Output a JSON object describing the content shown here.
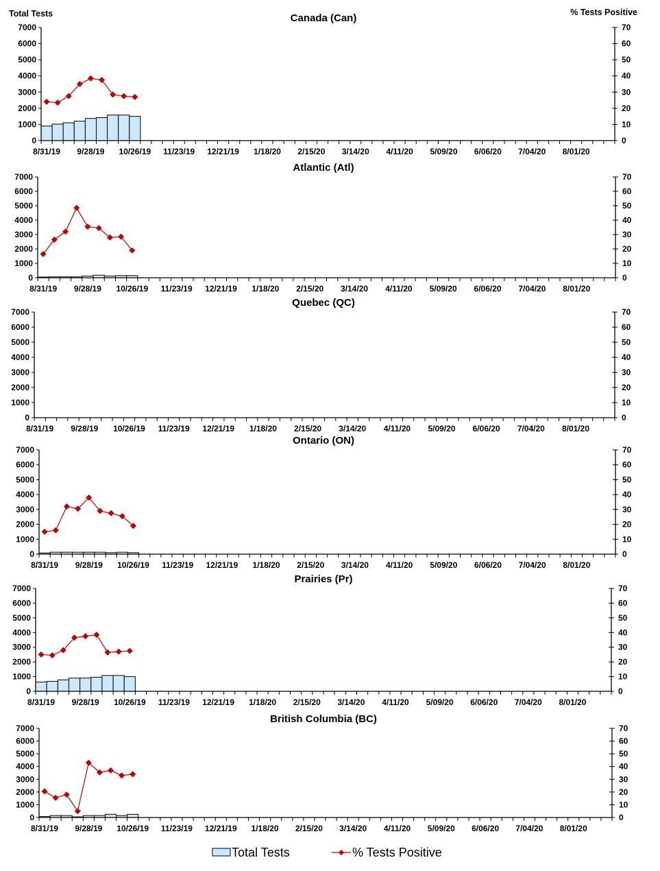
{
  "chart_data": {
    "type": "bar+line",
    "left_axis_label": "Total Tests",
    "right_axis_label": "% Tests Positive",
    "left_ylim": [
      0,
      7000
    ],
    "right_ylim": [
      0,
      70
    ],
    "left_ticks": [
      "0",
      "1000",
      "2000",
      "3000",
      "4000",
      "5000",
      "6000",
      "7000"
    ],
    "right_ticks": [
      "0",
      "10",
      "20",
      "30",
      "40",
      "50",
      "60",
      "70"
    ],
    "x_tick_labels": [
      "8/31/19",
      "9/28/19",
      "10/26/19",
      "11/23/19",
      "12/21/19",
      "1/18/20",
      "2/15/20",
      "3/14/20",
      "4/11/20",
      "5/09/20",
      "6/06/20",
      "7/04/20",
      "8/01/20"
    ],
    "weeks": 52,
    "legend": {
      "bar": "Total Tests",
      "line": "% Tests Positive",
      "placement": "bottom"
    },
    "colors": {
      "bar_fill": "#cce8fa",
      "bar_stroke": "#000000",
      "line": "#c00000"
    },
    "panels": [
      {
        "title": "Canada (Can)",
        "total_tests": [
          900,
          1020,
          1100,
          1200,
          1370,
          1420,
          1580,
          1580,
          1500
        ],
        "pct_positive": [
          24,
          23.5,
          27.5,
          35,
          38.5,
          37.5,
          28.5,
          27.5,
          27
        ]
      },
      {
        "title": "Atlantic (Atl)",
        "total_tests": [
          50,
          60,
          60,
          60,
          120,
          180,
          120,
          150,
          150
        ],
        "pct_positive": [
          16.5,
          26.5,
          32,
          48.5,
          35.5,
          34.5,
          28,
          28.5,
          19
        ]
      },
      {
        "title": "Quebec (QC)",
        "total_tests": [],
        "pct_positive": []
      },
      {
        "title": "Ontario (ON)",
        "total_tests": [
          80,
          130,
          130,
          130,
          130,
          130,
          100,
          130,
          100
        ],
        "pct_positive": [
          15,
          16,
          32,
          30.5,
          38,
          29,
          27.5,
          25.5,
          19
        ]
      },
      {
        "title": "Prairies (Pr)",
        "total_tests": [
          630,
          680,
          780,
          900,
          900,
          960,
          1080,
          1080,
          1000
        ],
        "pct_positive": [
          25,
          24.5,
          28,
          36.5,
          37.5,
          38.5,
          26.5,
          27,
          27.5
        ]
      },
      {
        "title": "British Columbia (BC)",
        "total_tests": [
          80,
          150,
          150,
          50,
          150,
          150,
          250,
          150,
          250
        ],
        "pct_positive": [
          20.5,
          15.5,
          18,
          5,
          43,
          35.5,
          37,
          33,
          34
        ]
      }
    ]
  }
}
